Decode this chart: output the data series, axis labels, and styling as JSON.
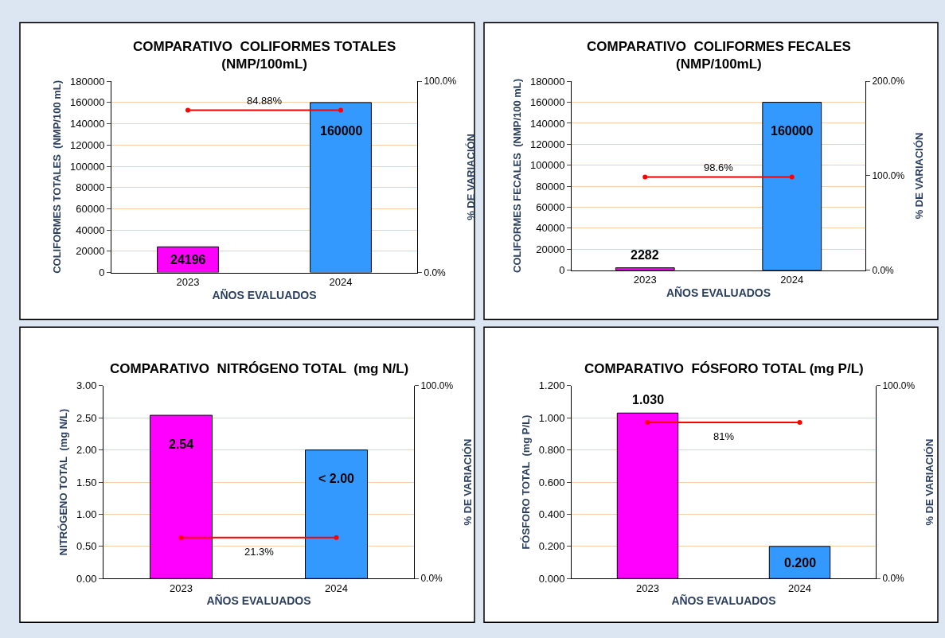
{
  "chart_data": [
    {
      "type": "bar",
      "title": "COMPARATIVO  COLIFORMES TOTALES\n(NMP/100mL)",
      "xlabel": "AÑOS EVALUADOS",
      "ylabel": "COLIFORMES TOTALES  (NMP/100 mL)",
      "y2label": "% DE VARIACIÓN",
      "categories": [
        "2023",
        "2024"
      ],
      "series": [
        {
          "colors": [
            "#ff00ff",
            "#3399ff"
          ],
          "values": [
            24196,
            160000
          ],
          "value_labels": [
            "24196",
            "160000"
          ]
        },
        {
          "type": "line",
          "axis": "y2",
          "color": "#ff0000",
          "values": [
            84.88,
            84.88
          ]
        }
      ],
      "annotations": [
        "84.88%"
      ],
      "ylim": [
        0,
        180000
      ],
      "yticks": [
        0,
        20000,
        40000,
        60000,
        80000,
        100000,
        120000,
        140000,
        160000,
        180000
      ],
      "y2lim": [
        0,
        100
      ],
      "y2ticks": [
        {
          "value": 0,
          "label": "0.0%"
        },
        {
          "value": 100,
          "label": "100.0%"
        }
      ],
      "grid": "y",
      "marker": "circle",
      "line_style": "solid"
    },
    {
      "type": "bar",
      "title": "COMPARATIVO  COLIFORMES FECALES\n(NMP/100mL)",
      "xlabel": "AÑOS EVALUADOS",
      "ylabel": "COLIFORMES FECALES  (NMP/100 mL)",
      "y2label": "% DE VARIACIÓN",
      "categories": [
        "2023",
        "2024"
      ],
      "series": [
        {
          "colors": [
            "#ff00ff",
            "#3399ff"
          ],
          "values": [
            2282,
            160000
          ],
          "value_labels": [
            "2282",
            "160000"
          ]
        },
        {
          "type": "line",
          "axis": "y2",
          "color": "#ff0000",
          "values": [
            98.6,
            98.6
          ]
        }
      ],
      "annotations": [
        "98.6%"
      ],
      "ylim": [
        0,
        180000
      ],
      "yticks": [
        0,
        20000,
        40000,
        60000,
        80000,
        100000,
        120000,
        140000,
        160000,
        180000
      ],
      "y2lim": [
        0,
        200
      ],
      "y2ticks": [
        {
          "value": 0,
          "label": "0.0%"
        },
        {
          "value": 100,
          "label": "100.0%"
        },
        {
          "value": 200,
          "label": "200.0%"
        }
      ],
      "grid": "y",
      "marker": "circle",
      "line_style": "solid"
    },
    {
      "type": "bar",
      "title": "COMPARATIVO  NITRÓGENO TOTAL  (mg N/L)",
      "xlabel": "AÑOS EVALUADOS",
      "ylabel": "NITRÓGENO TOTAL  (mg N/L)",
      "y2label": "% DE VARIACIÓN",
      "categories": [
        "2023",
        "2024"
      ],
      "series": [
        {
          "colors": [
            "#ff00ff",
            "#3399ff"
          ],
          "values": [
            2.54,
            2.0
          ],
          "value_labels": [
            "2.54",
            "< 2.00"
          ]
        },
        {
          "type": "line",
          "axis": "y2",
          "color": "#ff0000",
          "values": [
            21.3,
            21.3
          ]
        }
      ],
      "annotations": [
        "21.3%"
      ],
      "ylim": [
        0,
        3
      ],
      "yticks": [
        {
          "value": 0,
          "label": "0.00"
        },
        {
          "value": 0.5,
          "label": "0.50"
        },
        {
          "value": 1,
          "label": "1.00"
        },
        {
          "value": 1.5,
          "label": "1.50"
        },
        {
          "value": 2,
          "label": "2.00"
        },
        {
          "value": 2.5,
          "label": "2.50"
        },
        {
          "value": 3,
          "label": "3.00"
        }
      ],
      "y2lim": [
        0,
        100
      ],
      "y2ticks": [
        {
          "value": 0,
          "label": "0.0%"
        },
        {
          "value": 100,
          "label": "100.0%"
        }
      ],
      "grid": "y",
      "marker": "circle",
      "line_style": "solid"
    },
    {
      "type": "bar",
      "title": "COMPARATIVO  FÓSFORO TOTAL (mg P/L)",
      "xlabel": "AÑOS EVALUADOS",
      "ylabel": "FÓSFORO TOTAL  (mg P/L)",
      "y2label": "% DE VARIACIÓN",
      "categories": [
        "2023",
        "2024"
      ],
      "series": [
        {
          "colors": [
            "#ff00ff",
            "#3399ff"
          ],
          "values": [
            1.03,
            0.2
          ],
          "value_labels": [
            "1.030",
            "0.200"
          ]
        },
        {
          "type": "line",
          "axis": "y2",
          "color": "#ff0000",
          "values": [
            81,
            81
          ]
        }
      ],
      "annotations": [
        "81%"
      ],
      "ylim": [
        0,
        1.2
      ],
      "yticks": [
        {
          "value": 0,
          "label": "0.000"
        },
        {
          "value": 0.2,
          "label": "0.200"
        },
        {
          "value": 0.4,
          "label": "0.400"
        },
        {
          "value": 0.6,
          "label": "0.600"
        },
        {
          "value": 0.8,
          "label": "0.800"
        },
        {
          "value": 1,
          "label": "1.000"
        },
        {
          "value": 1.2,
          "label": "1.200"
        }
      ],
      "y2lim": [
        0,
        100
      ],
      "y2ticks": [
        {
          "value": 0,
          "label": "0.0%"
        },
        {
          "value": 100,
          "label": "100.0%"
        }
      ],
      "grid": "y",
      "marker": "circle",
      "line_style": "solid"
    }
  ]
}
